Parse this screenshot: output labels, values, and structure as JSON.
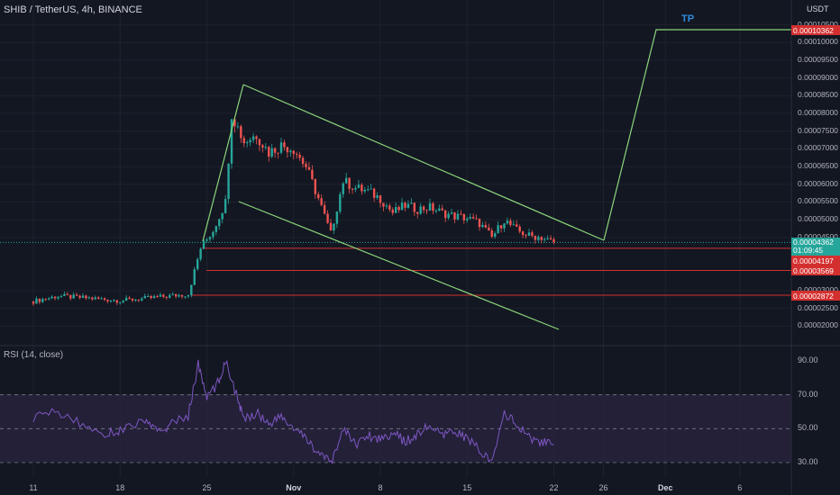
{
  "header": {
    "title": "SHIB / TetherUS, 4h, BINANCE"
  },
  "axis": {
    "unit_label": "USDT"
  },
  "annotation": {
    "tp_label": "TP"
  },
  "price_axis": {
    "ticks": [
      "0.00010500",
      "0.00010000",
      "0.00009500",
      "0.00009000",
      "0.00008500",
      "0.00008000",
      "0.00007500",
      "0.00007000",
      "0.00006500",
      "0.00006000",
      "0.00005500",
      "0.00005000",
      "0.00004500",
      "0.00003000",
      "0.00002500",
      "0.00002000"
    ]
  },
  "price_tags": {
    "tp": "0.00010362",
    "current_price": "0.00004362",
    "countdown": "01:09:45",
    "level_1": "0.00004197",
    "level_2": "0.00003569",
    "level_3": "0.00002872"
  },
  "indicator": {
    "title": "RSI (14, close)",
    "ticks": [
      "90.00",
      "70.00",
      "50.00",
      "30.00"
    ]
  },
  "time_axis": {
    "labels": [
      {
        "text": "11",
        "bold": false
      },
      {
        "text": "18",
        "bold": false
      },
      {
        "text": "25",
        "bold": false
      },
      {
        "text": "Nov",
        "bold": true
      },
      {
        "text": "8",
        "bold": false
      },
      {
        "text": "15",
        "bold": false
      },
      {
        "text": "22",
        "bold": false
      },
      {
        "text": "26",
        "bold": false
      },
      {
        "text": "Dec",
        "bold": true
      },
      {
        "text": "6",
        "bold": false
      }
    ]
  },
  "colors": {
    "background": "#131722",
    "up": "#26a69a",
    "down": "#ef5350",
    "drawing": "#8bd67a",
    "level_line": "#d32f2f",
    "rsi_line": "#7e57c2",
    "rsi_band": "#2a2440"
  },
  "chart_data": {
    "type": "candlestick",
    "symbol": "SHIB / TetherUS",
    "interval": "4h",
    "exchange": "BINANCE",
    "price_levels": [
      0.00010362,
      4.197e-05,
      3.569e-05,
      2.872e-05
    ],
    "last_price": 4.362e-05,
    "tp_target": 0.00010362,
    "price_path": [
      [
        11,
        2.7e-05
      ],
      [
        13,
        2.85e-05
      ],
      [
        15,
        2.8e-05
      ],
      [
        17,
        2.75e-05
      ],
      [
        18,
        2.72e-05
      ],
      [
        20,
        2.78e-05
      ],
      [
        22,
        2.85e-05
      ],
      [
        23.5,
        2.9e-05
      ],
      [
        24.5,
        4.2e-05
      ],
      [
        25.5,
        4.7e-05
      ],
      [
        26.5,
        5.5e-05
      ],
      [
        27,
        8e-05
      ],
      [
        28,
        7.2e-05
      ],
      [
        29,
        7.4e-05
      ],
      [
        30,
        6.9e-05
      ],
      [
        31,
        7.1e-05
      ],
      [
        32,
        7e-05
      ],
      [
        33,
        6.5e-05
      ],
      [
        34,
        5.6e-05
      ],
      [
        35,
        4.6e-05
      ],
      [
        36,
        6.1e-05
      ],
      [
        37,
        5.9e-05
      ],
      [
        38,
        5.8e-05
      ],
      [
        39,
        5.6e-05
      ],
      [
        40,
        5.2e-05
      ],
      [
        41,
        5.4e-05
      ],
      [
        42,
        5.3e-05
      ],
      [
        43,
        5.35e-05
      ],
      [
        44,
        5.2e-05
      ],
      [
        45,
        5.1e-05
      ],
      [
        46,
        5.05e-05
      ],
      [
        47,
        4.9e-05
      ],
      [
        48,
        4.5e-05
      ],
      [
        49,
        5e-05
      ],
      [
        50,
        4.7e-05
      ],
      [
        51,
        4.55e-05
      ],
      [
        52,
        4.5e-05
      ],
      [
        53,
        4.36e-05
      ]
    ],
    "rsi_range": [
      25,
      95
    ],
    "rsi_levels": [
      70,
      50,
      30
    ],
    "rsi_values": [
      [
        11,
        57
      ],
      [
        13,
        60
      ],
      [
        15,
        52
      ],
      [
        17,
        47
      ],
      [
        18,
        49
      ],
      [
        20,
        55
      ],
      [
        21,
        48
      ],
      [
        22,
        52
      ],
      [
        23.5,
        58
      ],
      [
        24.3,
        88
      ],
      [
        25,
        68
      ],
      [
        26,
        78
      ],
      [
        26.5,
        91
      ],
      [
        27.5,
        67
      ],
      [
        28,
        55
      ],
      [
        29,
        60
      ],
      [
        30,
        53
      ],
      [
        31,
        57
      ],
      [
        32,
        50
      ],
      [
        33,
        44
      ],
      [
        34,
        36
      ],
      [
        35,
        29
      ],
      [
        36,
        50
      ],
      [
        37,
        41
      ],
      [
        38,
        46
      ],
      [
        39,
        44
      ],
      [
        40,
        48
      ],
      [
        41,
        42
      ],
      [
        42,
        47
      ],
      [
        43,
        52
      ],
      [
        44,
        45
      ],
      [
        45,
        49
      ],
      [
        46,
        44
      ],
      [
        47,
        38
      ],
      [
        48,
        29
      ],
      [
        49,
        60
      ],
      [
        50,
        52
      ],
      [
        51,
        45
      ],
      [
        52,
        42
      ],
      [
        53,
        41
      ]
    ]
  }
}
